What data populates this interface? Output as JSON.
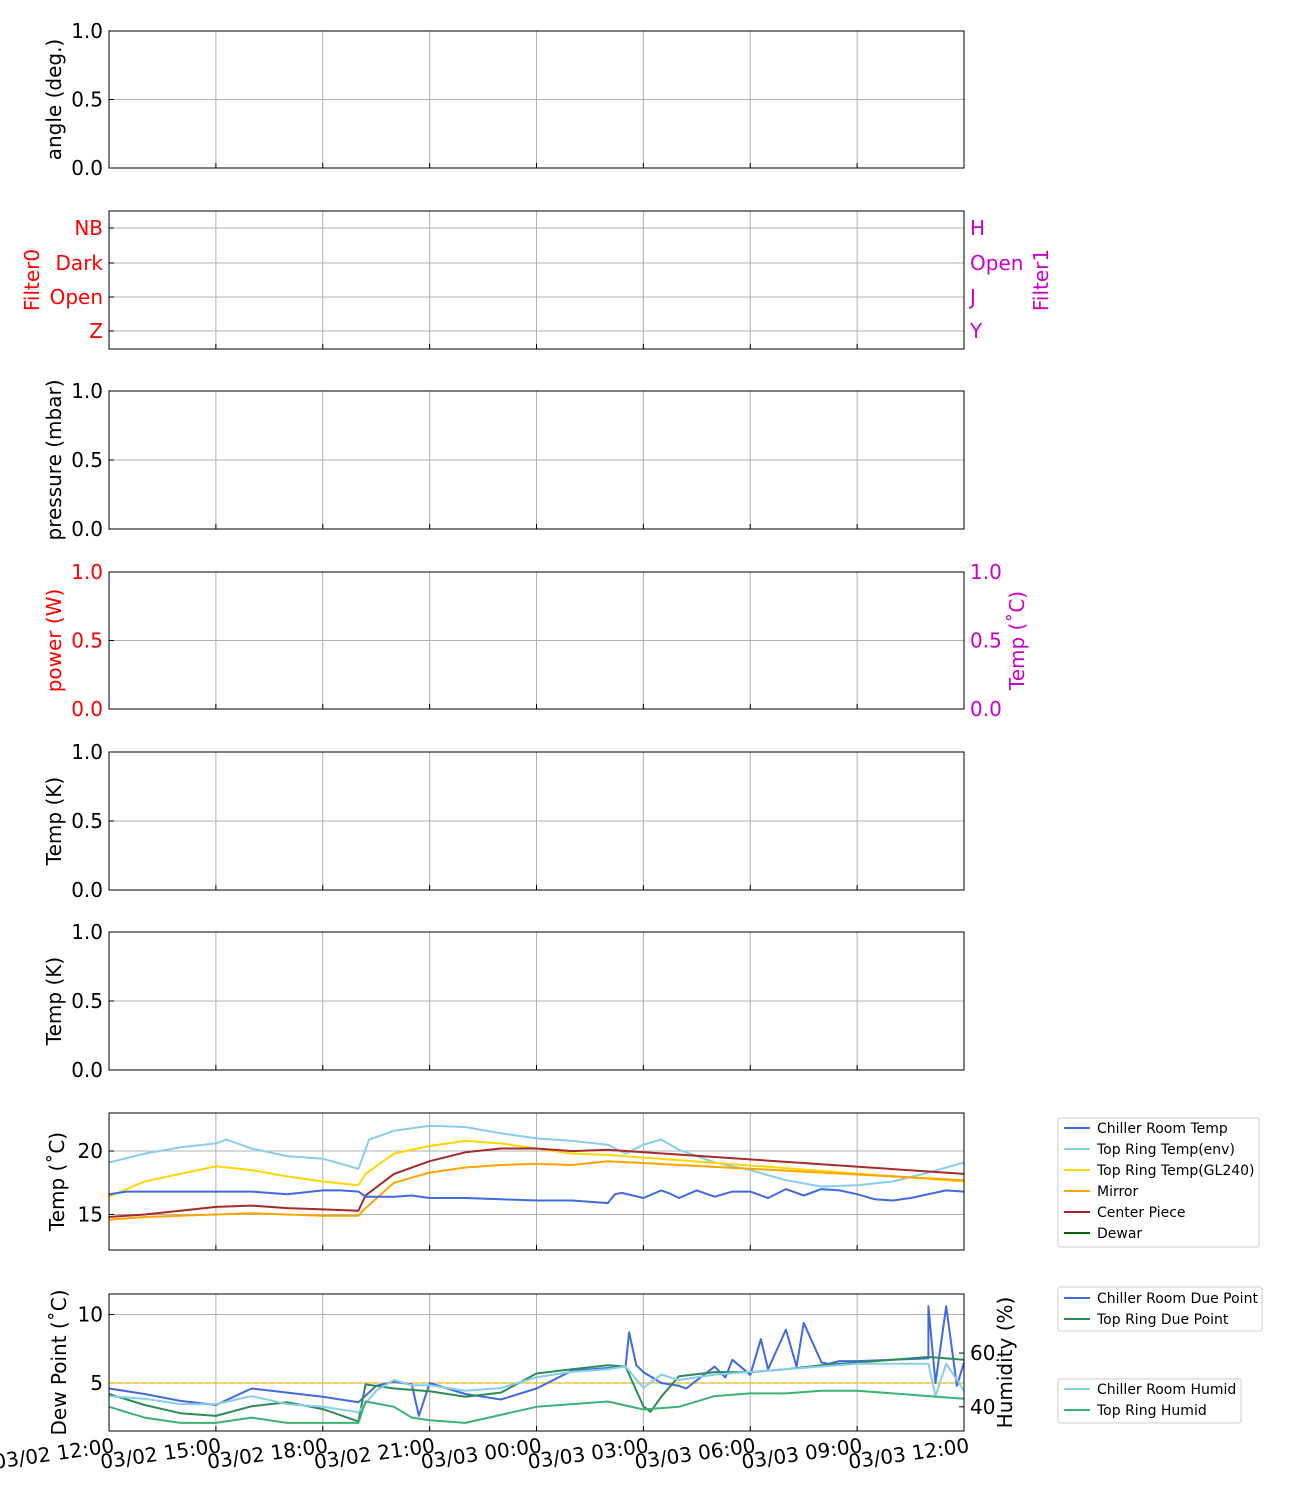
{
  "time_ticks": [
    "03/02 12:00",
    "03/02 15:00",
    "03/02 18:00",
    "03/02 21:00",
    "03/03 00:00",
    "03/03 03:00",
    "03/03 06:00",
    "03/03 09:00",
    "03/03 12:00"
  ],
  "colors": {
    "chiller_room_temp": "#4169e1",
    "top_ring_temp_env": "#87ceeb",
    "top_ring_temp_gl240": "#ffd700",
    "mirror": "#ffa500",
    "center_piece": "#a52a2a",
    "dewar": "#006400",
    "chiller_room_due_point": "#4169e1",
    "top_ring_due_point": "#2e8b57",
    "chiller_room_humid": "#87ceeb",
    "top_ring_humid": "#3cb371",
    "filter0": "#ff0000",
    "filter1": "#cc00cc",
    "grid": "#b0b0b0",
    "ref_line": "#ffc400"
  },
  "chart_data": [
    {
      "type": "line",
      "ylabel": "angle (deg.)",
      "ylim": [
        0,
        1
      ],
      "yticks": [
        "0.0",
        "0.5",
        "1.0"
      ],
      "grid": true,
      "series": []
    },
    {
      "type": "line",
      "ylabel_left": "Filter0",
      "ylabel_right": "Filter1",
      "yticks_left": [
        "Z",
        "Open",
        "Dark",
        "NB"
      ],
      "yticks_right": [
        "Y",
        "J",
        "Open",
        "H"
      ],
      "grid": true,
      "series": []
    },
    {
      "type": "line",
      "ylabel": "pressure (mbar)",
      "ylim": [
        0,
        1
      ],
      "yticks": [
        "0.0",
        "0.5",
        "1.0"
      ],
      "grid": true,
      "series": []
    },
    {
      "type": "line",
      "ylabel_left": "power (W)",
      "ylabel_right": "Temp (˚C)",
      "ylim": [
        0,
        1
      ],
      "yticks_left": [
        "0.0",
        "0.5",
        "1.0"
      ],
      "yticks_right": [
        "0.0",
        "0.5",
        "1.0"
      ],
      "grid": true,
      "series": []
    },
    {
      "type": "line",
      "ylabel": "Temp (K)",
      "ylim": [
        0,
        1
      ],
      "yticks": [
        "0.0",
        "0.5",
        "1.0"
      ],
      "grid": true,
      "series": []
    },
    {
      "type": "line",
      "ylabel": "Temp (K)",
      "ylim": [
        0,
        1
      ],
      "yticks": [
        "0.0",
        "0.5",
        "1.0"
      ],
      "grid": true,
      "series": []
    },
    {
      "type": "line",
      "ylabel": "Temp (˚C)",
      "ylim": [
        12.2,
        23
      ],
      "yticks": [
        "15",
        "20"
      ],
      "grid": true,
      "legend": "outside-right",
      "series": [
        {
          "name": "Chiller Room Temp",
          "x_hours": [
            0,
            0.5,
            1,
            2,
            3,
            4,
            5,
            6,
            6.5,
            7,
            7.2,
            7.5,
            8,
            8.5,
            9,
            10,
            11,
            12,
            13,
            14,
            14.2,
            14.4,
            15,
            15.5,
            15.7,
            16,
            16.5,
            17,
            17.5,
            18,
            18.5,
            19,
            19.5,
            20,
            20.5,
            21,
            21.5,
            22,
            22.5,
            23,
            23.5,
            24
          ],
          "y": [
            16.6,
            16.8,
            16.8,
            16.8,
            16.8,
            16.8,
            16.6,
            16.9,
            16.9,
            16.8,
            16.4,
            16.4,
            16.4,
            16.5,
            16.3,
            16.3,
            16.2,
            16.1,
            16.1,
            15.9,
            16.6,
            16.7,
            16.3,
            16.9,
            16.7,
            16.3,
            16.9,
            16.4,
            16.8,
            16.8,
            16.3,
            17.0,
            16.5,
            17.0,
            16.9,
            16.6,
            16.2,
            16.1,
            16.3,
            16.6,
            16.9,
            16.8
          ]
        },
        {
          "name": "Top Ring Temp(env)",
          "x_hours": [
            0,
            1,
            2,
            3,
            3.3,
            4,
            5,
            6,
            7,
            7.3,
            8,
            9,
            10,
            11,
            12,
            13,
            14,
            14.5,
            15,
            15.5,
            16,
            16.5,
            17,
            18,
            19,
            20,
            21,
            22,
            23,
            24
          ],
          "y": [
            19.1,
            19.8,
            20.3,
            20.6,
            20.9,
            20.2,
            19.6,
            19.4,
            18.6,
            20.9,
            21.6,
            22.0,
            21.9,
            21.4,
            21.0,
            20.8,
            20.5,
            19.8,
            20.5,
            20.9,
            20.1,
            19.6,
            19.1,
            18.5,
            17.7,
            17.2,
            17.3,
            17.6,
            18.3,
            19.1
          ]
        },
        {
          "name": "Top Ring Temp(GL240)",
          "x_hours": [
            0,
            1,
            2,
            3,
            4,
            5,
            6,
            7,
            7.2,
            8,
            9,
            10,
            11,
            12,
            13,
            14,
            24
          ],
          "y": [
            16.4,
            17.6,
            18.2,
            18.8,
            18.5,
            18.0,
            17.6,
            17.3,
            18.2,
            19.8,
            20.4,
            20.8,
            20.6,
            20.2,
            19.8,
            19.7,
            17.6
          ]
        },
        {
          "name": "Mirror",
          "x_hours": [
            0,
            1,
            2,
            3,
            4,
            5,
            6,
            7,
            7.2,
            8,
            9,
            10,
            11,
            12,
            13,
            14,
            24
          ],
          "y": [
            14.6,
            14.8,
            14.9,
            15.0,
            15.1,
            15.0,
            14.9,
            14.9,
            15.5,
            17.5,
            18.3,
            18.7,
            18.9,
            19.0,
            18.9,
            19.2,
            17.7
          ]
        },
        {
          "name": "Center Piece",
          "x_hours": [
            0,
            1,
            2,
            3,
            4,
            5,
            6,
            7,
            7.2,
            8,
            9,
            10,
            11,
            12,
            13,
            14,
            24
          ],
          "y": [
            14.8,
            15.0,
            15.3,
            15.6,
            15.7,
            15.5,
            15.4,
            15.3,
            16.5,
            18.2,
            19.2,
            19.9,
            20.2,
            20.2,
            20.0,
            20.1,
            18.2
          ]
        },
        {
          "name": "Dewar",
          "x_hours": [],
          "y": []
        }
      ]
    },
    {
      "type": "line",
      "ylabel_left": "Dew Point (˚C)",
      "ylabel_right": "Humidity (%)",
      "ylim": [
        1.5,
        11.5
      ],
      "y2lim": [
        31,
        82
      ],
      "yticks_left": [
        "5",
        "10"
      ],
      "yticks_right": [
        "40",
        "60"
      ],
      "reference_line_y": 5,
      "grid": true,
      "legend": "outside-right",
      "series": [
        {
          "name": "Chiller Room Due Point",
          "axis": "left",
          "x_hours": [
            0,
            1,
            2,
            3,
            4,
            5,
            6,
            7,
            7.5,
            8,
            8.5,
            8.7,
            9,
            10,
            11,
            12,
            13,
            14,
            14.5,
            14.6,
            14.8,
            15,
            15.5,
            16,
            16.2,
            16.5,
            17,
            17.3,
            17.5,
            18,
            18.3,
            18.5,
            19,
            19.3,
            19.5,
            20,
            20.2,
            20.5,
            21,
            22,
            23,
            23,
            23.2,
            23.5,
            23.8,
            24
          ],
          "y": [
            4.6,
            4.2,
            3.7,
            3.4,
            4.6,
            4.3,
            4.0,
            3.6,
            4.8,
            5.1,
            4.9,
            2.6,
            5.0,
            4.2,
            3.8,
            4.6,
            5.9,
            6.1,
            6.2,
            8.7,
            6.3,
            5.8,
            5.0,
            4.8,
            4.6,
            5.2,
            6.2,
            5.4,
            6.7,
            5.6,
            8.2,
            6.0,
            8.9,
            6.2,
            9.4,
            6.5,
            6.4,
            6.6,
            6.6,
            6.7,
            6.8,
            10.6,
            5.0,
            10.6,
            4.8,
            6.5
          ]
        },
        {
          "name": "Top Ring Due Point",
          "axis": "left",
          "x_hours": [
            0,
            1,
            2,
            3,
            4,
            5,
            6,
            7,
            7.2,
            8,
            9,
            10,
            11,
            12,
            13,
            14,
            14.5,
            15,
            15.2,
            15.5,
            16,
            17,
            18,
            19,
            20,
            21,
            22,
            23,
            24
          ],
          "y": [
            4.2,
            3.4,
            2.8,
            2.6,
            3.3,
            3.6,
            3.1,
            2.2,
            4.9,
            4.6,
            4.4,
            4.0,
            4.3,
            5.7,
            6.0,
            6.3,
            6.2,
            3.3,
            2.9,
            4.0,
            5.5,
            5.8,
            5.8,
            6.0,
            6.3,
            6.5,
            6.7,
            6.9,
            6.7
          ]
        },
        {
          "name": "Chiller Room Humid",
          "axis": "right",
          "x_hours": [
            0,
            1,
            2,
            3,
            4,
            5,
            6,
            7,
            7.5,
            8,
            8.5,
            9,
            10,
            11,
            12,
            13,
            14,
            14.5,
            15,
            15.5,
            16,
            17,
            18,
            19,
            20,
            21,
            22,
            23,
            23.2,
            23.5,
            24
          ],
          "y": [
            44,
            43,
            41,
            41,
            44,
            41,
            40,
            38,
            46,
            50,
            48,
            48,
            46,
            47,
            51,
            53,
            54,
            55,
            47,
            52,
            50,
            52,
            53,
            54,
            55,
            56,
            56,
            56,
            44,
            56,
            46
          ]
        },
        {
          "name": "Top Ring Humid",
          "axis": "right",
          "x_hours": [
            0,
            1,
            2,
            3,
            4,
            5,
            6,
            7,
            7.2,
            8,
            8.5,
            9,
            10,
            11,
            12,
            13,
            14,
            15,
            16,
            17,
            18,
            19,
            20,
            21,
            22,
            23,
            24
          ],
          "y": [
            40,
            36,
            34,
            34,
            36,
            34,
            34,
            34,
            42,
            40,
            36,
            35,
            34,
            37,
            40,
            41,
            42,
            39,
            40,
            44,
            45,
            45,
            46,
            46,
            45,
            44,
            43
          ]
        }
      ]
    }
  ]
}
